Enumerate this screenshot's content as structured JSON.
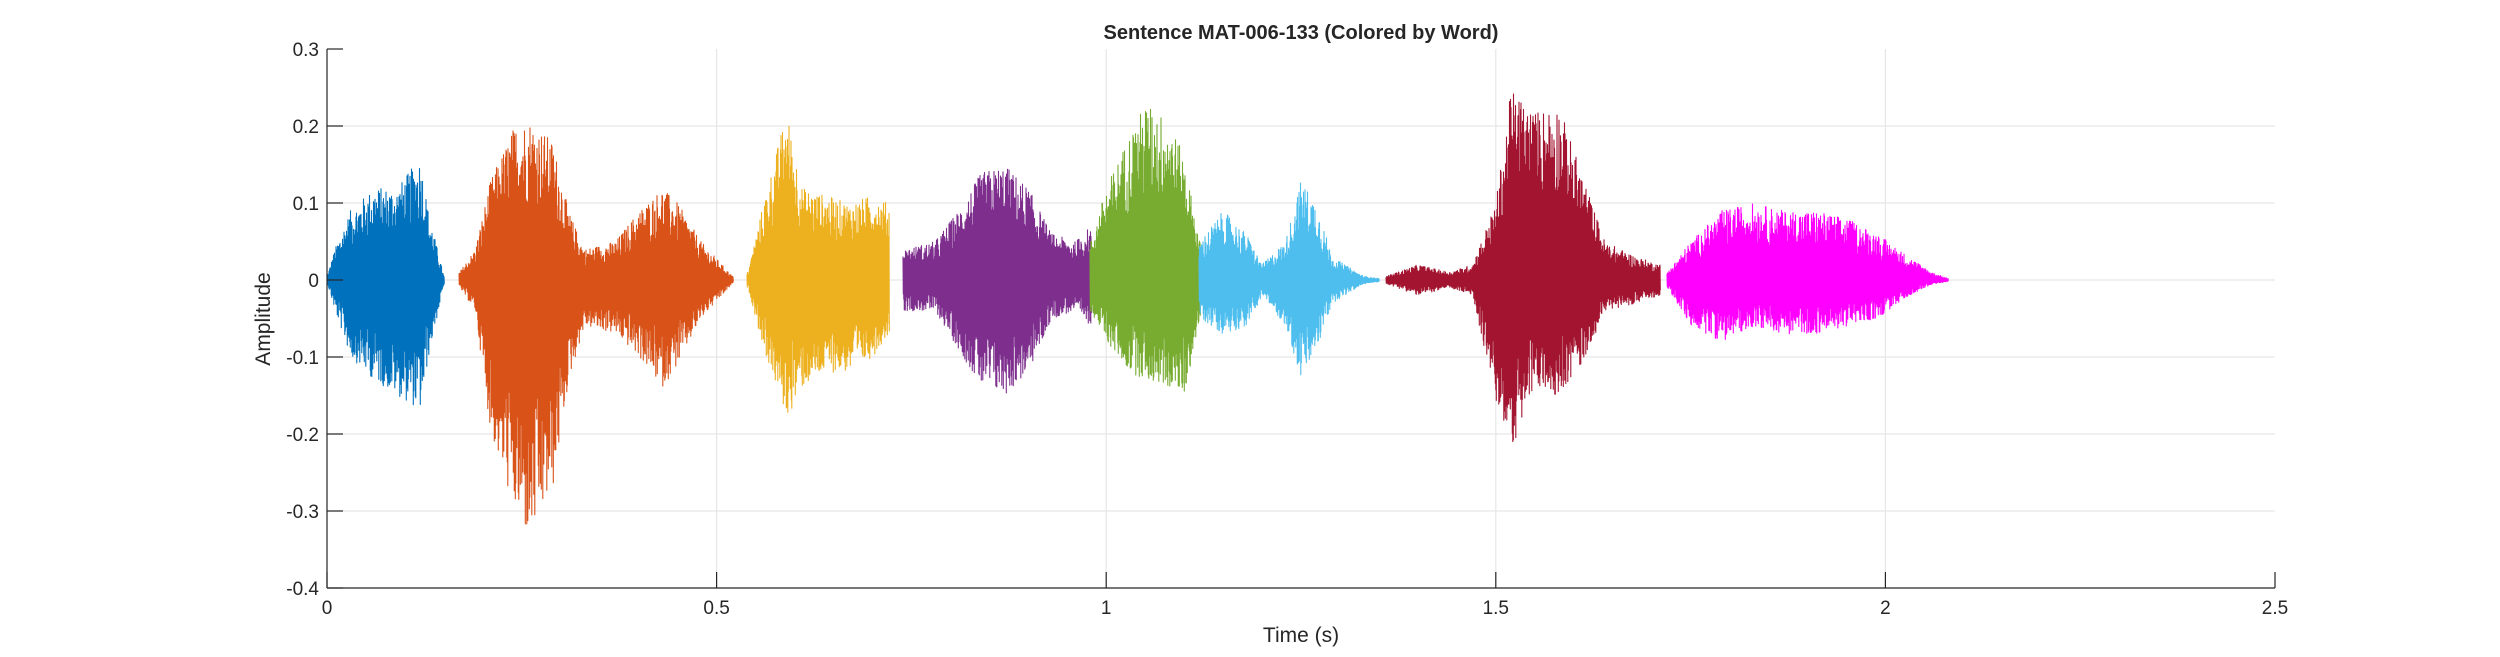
{
  "chart_data": {
    "type": "line",
    "title": "Sentence MAT-006-133 (Colored by Word)",
    "xlabel": "Time (s)",
    "ylabel": "Amplitude",
    "xlim": [
      0,
      2.5
    ],
    "ylim": [
      -0.4,
      0.3
    ],
    "xticks": [
      0,
      0.5,
      1,
      1.5,
      2,
      2.5
    ],
    "xtick_labels": [
      "0",
      "0.5",
      "1",
      "1.5",
      "2",
      "2.5"
    ],
    "yticks": [
      0.3,
      0.2,
      0.1,
      0,
      -0.1,
      -0.2,
      -0.3,
      -0.4
    ],
    "ytick_labels": [
      "0.3",
      "0.2",
      "0.1",
      "0",
      "-0.1",
      "-0.2",
      "-0.3",
      "-0.4"
    ],
    "grid": true,
    "legend": "none",
    "series": [
      {
        "color": "#0072BD",
        "x_range": [
          0.0,
          0.15
        ],
        "envelope": [
          [
            0.0,
            0.004,
            -0.004
          ],
          [
            0.01,
            0.04,
            -0.04
          ],
          [
            0.03,
            0.09,
            -0.1
          ],
          [
            0.06,
            0.12,
            -0.13
          ],
          [
            0.09,
            0.12,
            -0.15
          ],
          [
            0.12,
            0.16,
            -0.17
          ],
          [
            0.13,
            0.09,
            -0.1
          ],
          [
            0.15,
            0.005,
            -0.005
          ]
        ]
      },
      {
        "color": "#D95319",
        "x_range": [
          0.17,
          0.52
        ],
        "envelope": [
          [
            0.17,
            0.01,
            -0.01
          ],
          [
            0.19,
            0.04,
            -0.04
          ],
          [
            0.21,
            0.13,
            -0.2
          ],
          [
            0.24,
            0.2,
            -0.3
          ],
          [
            0.26,
            0.21,
            -0.34
          ],
          [
            0.29,
            0.18,
            -0.27
          ],
          [
            0.31,
            0.09,
            -0.13
          ],
          [
            0.33,
            0.04,
            -0.06
          ],
          [
            0.37,
            0.05,
            -0.07
          ],
          [
            0.4,
            0.09,
            -0.1
          ],
          [
            0.43,
            0.12,
            -0.14
          ],
          [
            0.45,
            0.1,
            -0.11
          ],
          [
            0.48,
            0.05,
            -0.05
          ],
          [
            0.52,
            0.005,
            -0.005
          ]
        ]
      },
      {
        "color": "#EDB120",
        "x_range": [
          0.54,
          0.72
        ],
        "envelope": [
          [
            0.54,
            0.01,
            -0.01
          ],
          [
            0.56,
            0.1,
            -0.09
          ],
          [
            0.59,
            0.22,
            -0.18
          ],
          [
            0.61,
            0.12,
            -0.14
          ],
          [
            0.64,
            0.11,
            -0.12
          ],
          [
            0.67,
            0.1,
            -0.12
          ],
          [
            0.7,
            0.11,
            -0.1
          ],
          [
            0.72,
            0.1,
            -0.07
          ]
        ]
      },
      {
        "color": "#7E2F8E",
        "x_range": [
          0.74,
          0.98
        ],
        "envelope": [
          [
            0.74,
            0.04,
            -0.04
          ],
          [
            0.78,
            0.05,
            -0.04
          ],
          [
            0.81,
            0.09,
            -0.09
          ],
          [
            0.84,
            0.14,
            -0.14
          ],
          [
            0.87,
            0.15,
            -0.15
          ],
          [
            0.9,
            0.12,
            -0.12
          ],
          [
            0.93,
            0.06,
            -0.05
          ],
          [
            0.96,
            0.05,
            -0.04
          ],
          [
            0.98,
            0.07,
            -0.06
          ]
        ]
      },
      {
        "color": "#77AC30",
        "x_range": [
          0.98,
          1.12
        ],
        "envelope": [
          [
            0.98,
            0.05,
            -0.04
          ],
          [
            1.0,
            0.12,
            -0.08
          ],
          [
            1.03,
            0.19,
            -0.12
          ],
          [
            1.05,
            0.23,
            -0.13
          ],
          [
            1.08,
            0.21,
            -0.14
          ],
          [
            1.1,
            0.16,
            -0.15
          ],
          [
            1.12,
            0.05,
            -0.05
          ]
        ]
      },
      {
        "color": "#4DBEEE",
        "x_range": [
          1.12,
          1.35
        ],
        "envelope": [
          [
            1.12,
            0.05,
            -0.05
          ],
          [
            1.15,
            0.09,
            -0.07
          ],
          [
            1.18,
            0.06,
            -0.06
          ],
          [
            1.2,
            0.02,
            -0.02
          ],
          [
            1.23,
            0.05,
            -0.06
          ],
          [
            1.25,
            0.13,
            -0.13
          ],
          [
            1.27,
            0.1,
            -0.09
          ],
          [
            1.29,
            0.03,
            -0.03
          ],
          [
            1.33,
            0.005,
            -0.005
          ],
          [
            1.35,
            0.002,
            -0.002
          ]
        ]
      },
      {
        "color": "#A2142F",
        "x_range": [
          1.36,
          1.71
        ],
        "envelope": [
          [
            1.36,
            0.005,
            -0.005
          ],
          [
            1.4,
            0.02,
            -0.02
          ],
          [
            1.44,
            0.01,
            -0.01
          ],
          [
            1.47,
            0.02,
            -0.02
          ],
          [
            1.5,
            0.1,
            -0.16
          ],
          [
            1.52,
            0.25,
            -0.22
          ],
          [
            1.55,
            0.22,
            -0.14
          ],
          [
            1.58,
            0.23,
            -0.15
          ],
          [
            1.61,
            0.14,
            -0.11
          ],
          [
            1.64,
            0.05,
            -0.04
          ],
          [
            1.68,
            0.03,
            -0.03
          ],
          [
            1.71,
            0.02,
            -0.02
          ]
        ]
      },
      {
        "color": "#FF00FF",
        "x_range": [
          1.72,
          2.08
        ],
        "envelope": [
          [
            1.72,
            0.01,
            -0.01
          ],
          [
            1.75,
            0.05,
            -0.06
          ],
          [
            1.79,
            0.09,
            -0.08
          ],
          [
            1.83,
            0.1,
            -0.06
          ],
          [
            1.87,
            0.09,
            -0.07
          ],
          [
            1.91,
            0.09,
            -0.07
          ],
          [
            1.95,
            0.08,
            -0.06
          ],
          [
            1.99,
            0.06,
            -0.05
          ],
          [
            2.03,
            0.03,
            -0.02
          ],
          [
            2.06,
            0.01,
            -0.005
          ],
          [
            2.08,
            0.002,
            -0.002
          ]
        ]
      }
    ]
  }
}
